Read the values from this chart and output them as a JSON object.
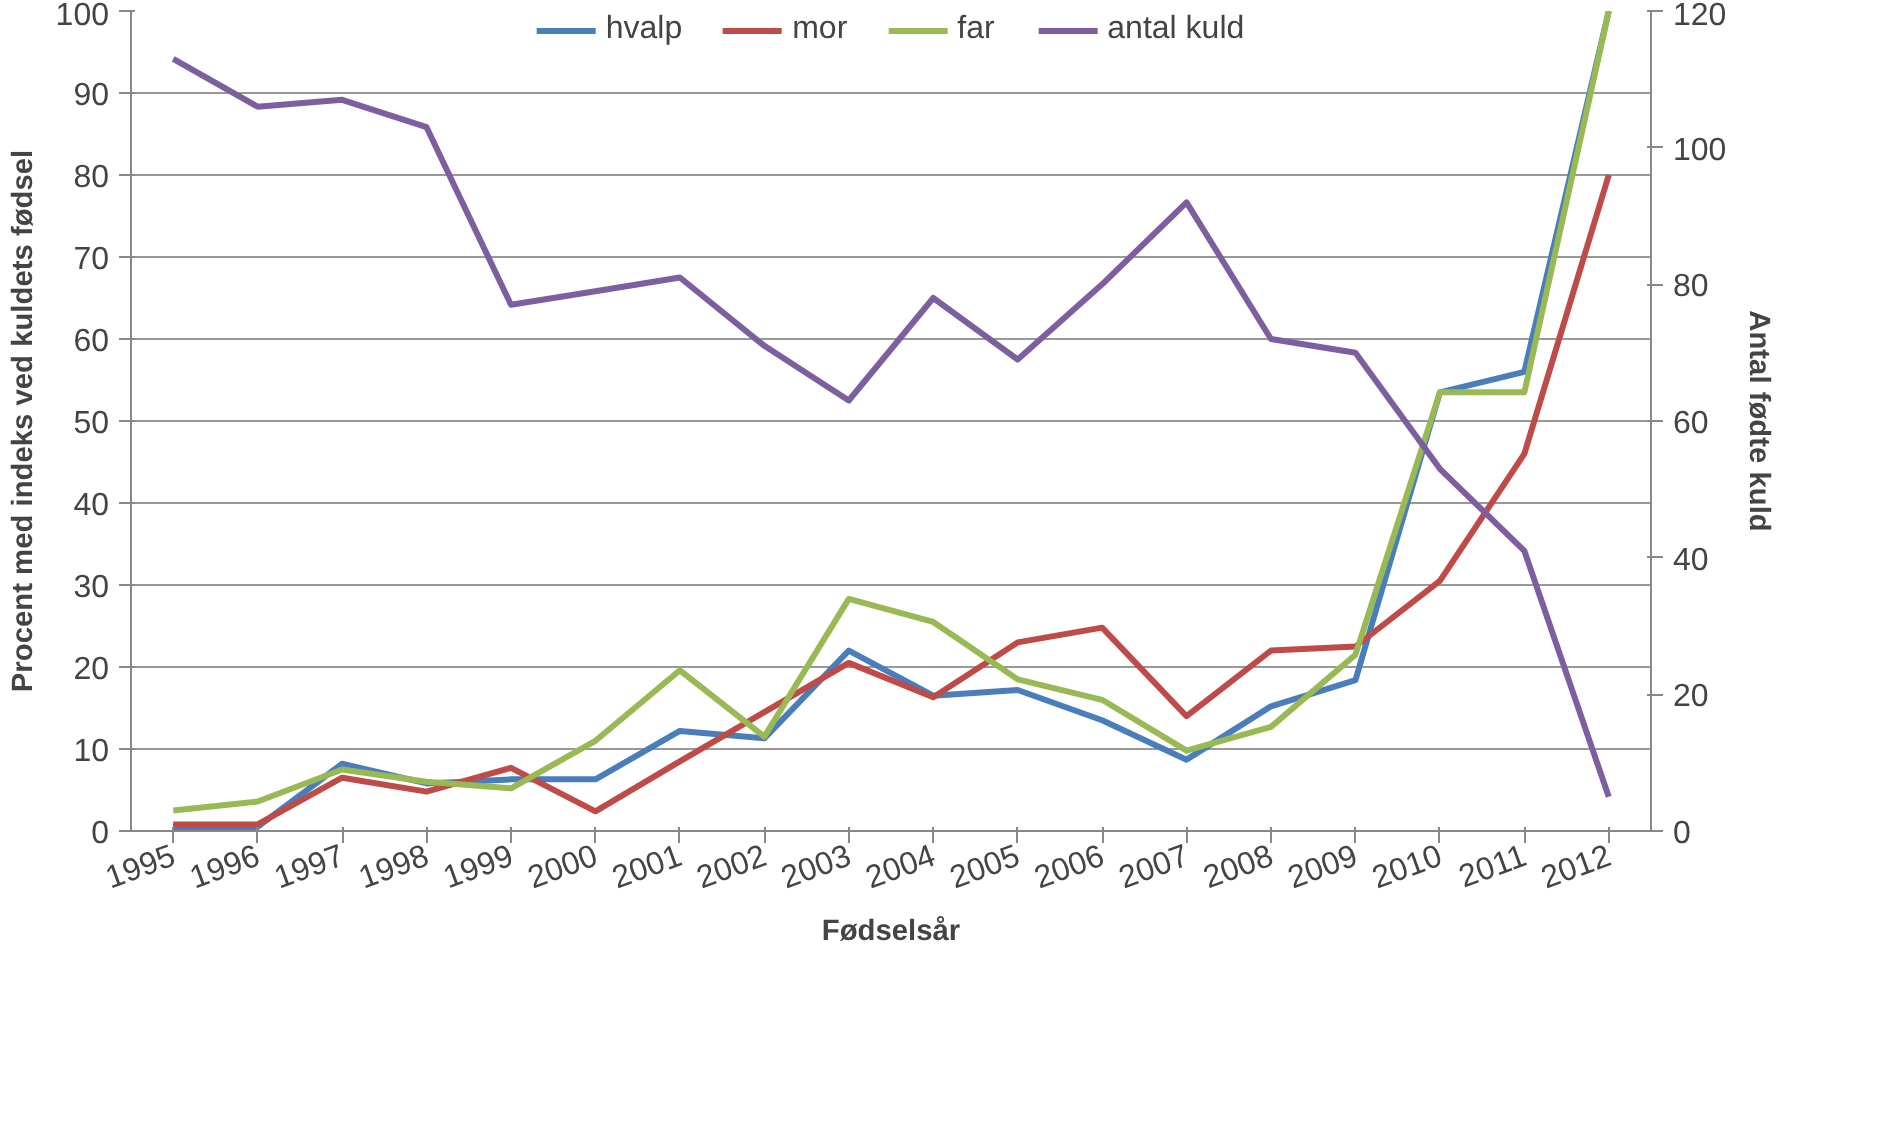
{
  "chart_data": {
    "type": "line",
    "xlabel": "Fødselsår",
    "ylabel": "Procent med indeks ved kuldets fødsel",
    "y2label": "Antal fødte kuld",
    "categories": [
      "1995",
      "1996",
      "1997",
      "1998",
      "1999",
      "2000",
      "2001",
      "2002",
      "2003",
      "2004",
      "2005",
      "2006",
      "2007",
      "2008",
      "2009",
      "2010",
      "2011",
      "2012"
    ],
    "ylim": [
      0,
      100
    ],
    "yticks": [
      0,
      10,
      20,
      30,
      40,
      50,
      60,
      70,
      80,
      90,
      100
    ],
    "y2lim": [
      0,
      120
    ],
    "y2ticks": [
      0,
      20,
      40,
      60,
      80,
      100,
      120
    ],
    "grid": "y",
    "legend": "top",
    "marker": "none",
    "line_style": "solid",
    "series": [
      {
        "name": "hvalp",
        "color": "#4a7ebb",
        "values": [
          0.5,
          0.5,
          8.2,
          5.8,
          6.3,
          6.3,
          12.2,
          11.3,
          22,
          16.5,
          17.2,
          13.5,
          8.7,
          15.2,
          18.4,
          53.5,
          56,
          100
        ]
      },
      {
        "name": "mor",
        "color": "#be4b48",
        "values": [
          0.8,
          0.8,
          6.5,
          4.8,
          7.7,
          2.4,
          8.5,
          14.5,
          20.5,
          16.3,
          23,
          24.8,
          14,
          22,
          22.5,
          30.5,
          46,
          80
        ]
      },
      {
        "name": "far",
        "color": "#98b954",
        "values": [
          2.5,
          3.6,
          7.5,
          6,
          5.2,
          11,
          19.6,
          11.5,
          28.3,
          25.5,
          18.5,
          16,
          9.8,
          12.7,
          21.5,
          53.5,
          53.5,
          100
        ]
      },
      {
        "name": "antal kuld",
        "color": "#7d5fa0",
        "axis": "y2",
        "values": [
          113,
          106,
          107,
          103,
          77,
          79,
          81,
          71,
          63,
          78,
          69,
          80,
          92,
          72,
          70,
          53,
          41,
          5
        ]
      }
    ]
  }
}
